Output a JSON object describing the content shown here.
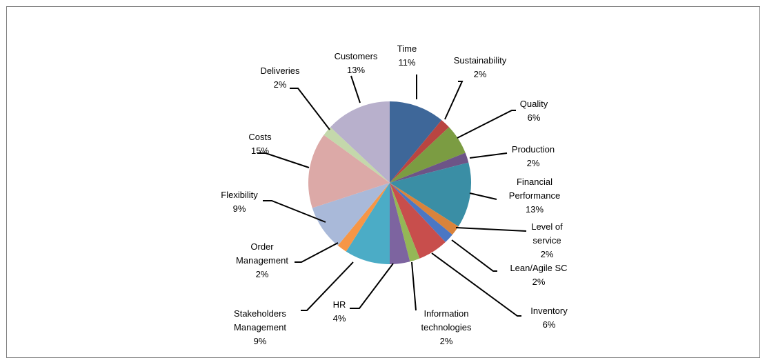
{
  "chart_data": {
    "type": "pie",
    "title": "",
    "slices": [
      {
        "label": "Time",
        "value": 11,
        "pct": "11%",
        "color": "#3E6799"
      },
      {
        "label": "Sustainability",
        "value": 2,
        "pct": "2%",
        "color": "#B94541"
      },
      {
        "label": "Quality",
        "value": 6,
        "pct": "6%",
        "color": "#7B9C42"
      },
      {
        "label": "Production",
        "value": 2,
        "pct": "2%",
        "color": "#6D5487"
      },
      {
        "label": "Financial Performance",
        "value": 13,
        "pct": "13%",
        "color": "#3A8EA5"
      },
      {
        "label": "Level of service",
        "value": 2,
        "pct": "2%",
        "color": "#D9833B"
      },
      {
        "label": "Lean/Agile SC",
        "value": 2,
        "pct": "2%",
        "color": "#4B77C4"
      },
      {
        "label": "Inventory",
        "value": 6,
        "pct": "6%",
        "color": "#C84E4C"
      },
      {
        "label": "Information technologies",
        "value": 2,
        "pct": "2%",
        "color": "#94B756"
      },
      {
        "label": "HR",
        "value": 4,
        "pct": "4%",
        "color": "#7D64A0"
      },
      {
        "label": "Stakeholders Management",
        "value": 9,
        "pct": "9%",
        "color": "#4BACC6"
      },
      {
        "label": "Order Management",
        "value": 2,
        "pct": "2%",
        "color": "#F79646"
      },
      {
        "label": "Flexibility",
        "value": 9,
        "pct": "9%",
        "color": "#A9B9D9"
      },
      {
        "label": "Costs",
        "value": 15,
        "pct": "15%",
        "color": "#DCA9A7"
      },
      {
        "label": "Deliveries",
        "value": 2,
        "pct": "2%",
        "color": "#C4D8AB"
      },
      {
        "label": "Customers",
        "value": 13,
        "pct": "13%",
        "color": "#B8B0CC"
      }
    ]
  }
}
